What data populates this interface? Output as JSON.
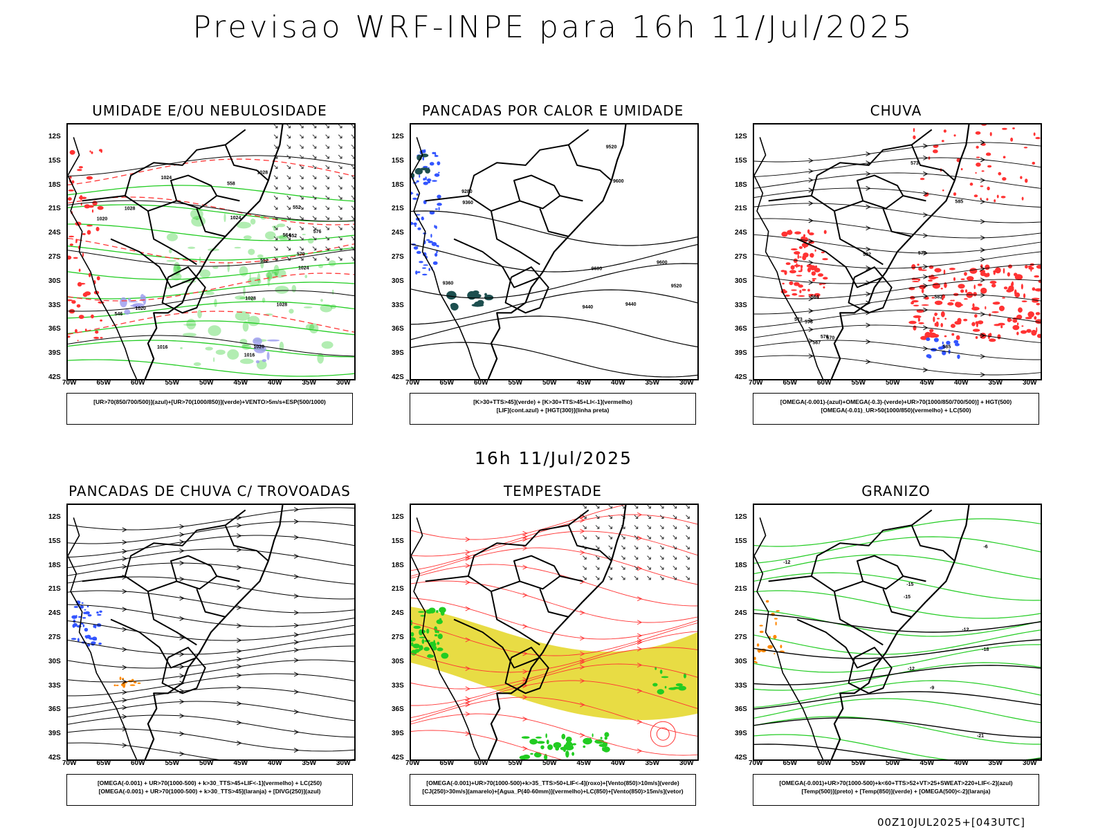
{
  "header": {
    "title": "Previsao WRF-INPE  para 16h 11/Jul/2025"
  },
  "mid_label": "16h 11/Jul/2025",
  "footer": "00Z10JUL2025+[043UTC]",
  "axes": {
    "lat_labels": [
      "12S",
      "15S",
      "18S",
      "21S",
      "24S",
      "27S",
      "30S",
      "33S",
      "36S",
      "39S",
      "42S"
    ],
    "lon_labels": [
      "70W",
      "65W",
      "60W",
      "55W",
      "50W",
      "45W",
      "40W",
      "35W",
      "30W"
    ]
  },
  "panels": [
    {
      "title": "UMIDADE E/OU NEBULOSIDADE",
      "legend_lines": [
        "[UR>70(850/700/500)](azul)+[UR>70(1000/850)](verde)+VENTO>5m/s+ESP(500/1000)"
      ],
      "contour_labels": [
        "1016",
        "1016",
        "1020",
        "1020",
        "1020",
        "1024",
        "1024",
        "1024",
        "1028",
        "1028",
        "1028",
        "1028",
        "570",
        "564",
        "558",
        "552",
        "552",
        "546",
        "576",
        "552"
      ]
    },
    {
      "title": "PANCADAS POR CALOR E UMIDADE",
      "legend_lines": [
        "[K>30+TTS>45](verde) + [K>30+TTS>45+LI<-1](vermelho)",
        "[LIF](cont.azul) + [HGT(300)](linha preta)"
      ],
      "contour_labels": [
        "9600",
        "9520",
        "9440",
        "9360",
        "9280",
        "9360",
        "9520",
        "9440",
        "9600",
        "9600"
      ]
    },
    {
      "title": "CHUVA",
      "legend_lines": [
        "[OMEGA(-0.001)-(azul)+OMEGA(-0.3)-(verde)+UR>70(1000/850/700/500)] + HGT(500)",
        "[OMEGA(-0.01)_UR>50(1000/850)(vermelho) + LC(500)"
      ],
      "contour_labels": [
        "585",
        "582",
        "582",
        "585",
        "573",
        "576",
        "576",
        "573",
        "570",
        "567",
        "564",
        "570"
      ]
    },
    {
      "title": "PANCADAS DE CHUVA C/ TROVOADAS",
      "legend_lines": [
        "[OMEGA(-0.001) + UR>70(1000-500) + k>30_TTS>45+LIF<-1](vermelho) + LC(250)",
        "[OMEGA(-0.001) + UR>70(1000-500) + k>30_TTS>45](laranja) + [DIVG(250)](azul)"
      ],
      "contour_labels": []
    },
    {
      "title": "TEMPESTADE",
      "legend_lines": [
        "[OMEGA(-0.001)+UR>70(1000-500)+k>35_TTS>50+LIF<-4](roxo)+[Vento(850)>10m/s](verde)",
        "[CJ(250)>30m/s](amarelo)+[Agua_P(40-60mm)](vermelho)+LC(850)+[Vento(850)>15m/s](vetor)"
      ],
      "contour_labels": []
    },
    {
      "title": "GRANIZO",
      "legend_lines": [
        "[OMEGA(-0.001)+UR>70(1000-500)+k<60+TTS>52+VT>25+SWEAT>220+LIF<-2](azul)",
        "[Temp(500)](preto) + [Temp(850)](verde) + [OMEGA(500)<-2](laranja)"
      ],
      "contour_labels": [
        "-9",
        "-12",
        "-12",
        "-15",
        "-12",
        "-15",
        "-18",
        "-21",
        "-6"
      ]
    }
  ],
  "colors": {
    "green": "#22cc22",
    "red": "#ff3333",
    "blue": "#3355ff",
    "yellow": "#e6d830",
    "orange": "#ff8800",
    "purple": "#9999ee",
    "teal": "#1d4f4f"
  }
}
